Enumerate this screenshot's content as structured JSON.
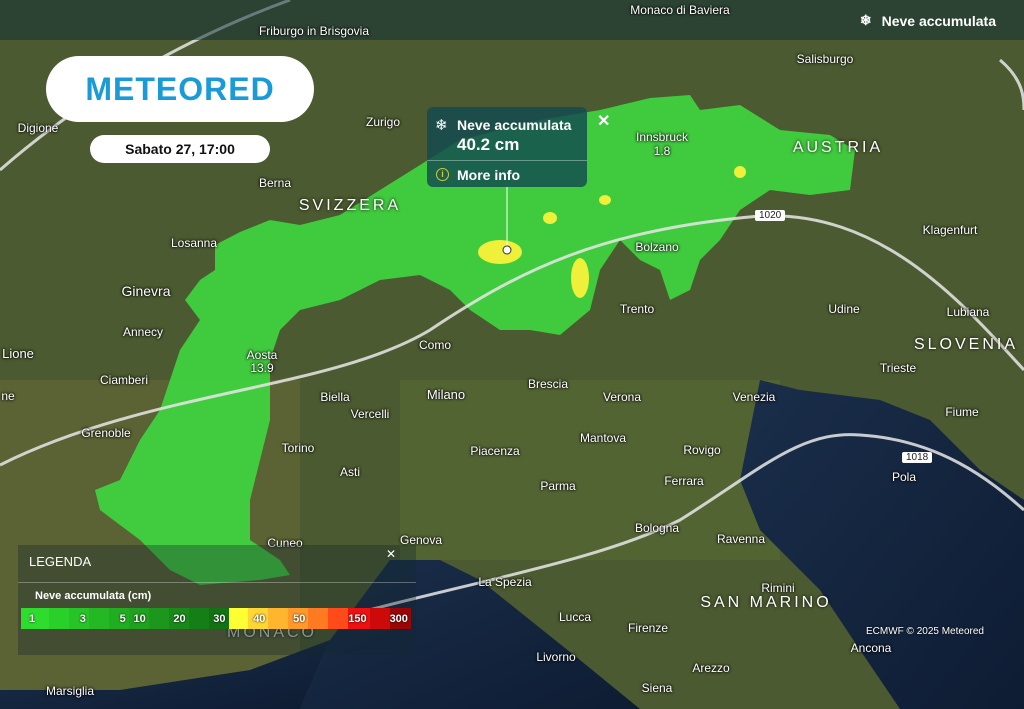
{
  "layer": {
    "title": "Neve accumulata",
    "icon": "snowflake-icon"
  },
  "logo": "METEORED",
  "date_label": "Sabato 27, 17:00",
  "popup": {
    "title": "Neve accumulata",
    "value": "40.2 cm",
    "more_info": "More info",
    "close": "✕"
  },
  "legend": {
    "title": "LEGENDA",
    "close": "✕",
    "unit_label": "Neve accumulata (cm)",
    "scale": [
      {
        "label": "1",
        "color": "#2edc2e"
      },
      {
        "label": "",
        "color": "#2ad02a"
      },
      {
        "label": "3",
        "color": "#27c427"
      },
      {
        "label": "",
        "color": "#24b824"
      },
      {
        "label": "5",
        "color": "#21ad21"
      },
      {
        "label": "10",
        "color": "#1fa21f"
      },
      {
        "label": "",
        "color": "#1c961c"
      },
      {
        "label": "20",
        "color": "#198a19"
      },
      {
        "label": "",
        "color": "#167e16"
      },
      {
        "label": "30",
        "color": "#137213"
      },
      {
        "label": "",
        "color": "#ffff33"
      },
      {
        "label": "40",
        "color": "#ffd633"
      },
      {
        "label": "",
        "color": "#ffb52e"
      },
      {
        "label": "50",
        "color": "#ff9a2a"
      },
      {
        "label": "",
        "color": "#ff7a20"
      },
      {
        "label": "",
        "color": "#ff4a1a"
      },
      {
        "label": "150",
        "color": "#ee1111"
      },
      {
        "label": "",
        "color": "#cc0a0a"
      },
      {
        "label": "300",
        "color": "#9a0606"
      }
    ]
  },
  "credit": "ECMWF © 2025 Meteored",
  "isobars": [
    "1020",
    "1018"
  ],
  "countries": [
    "SVIZZERA",
    "AUSTRIA",
    "SLOVENIA",
    "SAN MARINO",
    "MONACO"
  ],
  "cities": [
    "Friburgo in Brisgovia",
    "Monaco di Baviera",
    "Salisburgo",
    "Digione",
    "Zurigo",
    "Innsbruck",
    "1.8",
    "Berna",
    "Losanna",
    "Ginevra",
    "Annecy",
    "Aosta",
    "13.9",
    "Lione",
    "Ciamberi",
    "Grenoble",
    "Torino",
    "Biella",
    "Vercelli",
    "Como",
    "Milano",
    "Brescia",
    "Verona",
    "Bolzano",
    "Trento",
    "Udine",
    "Klagenfurt",
    "Lubiana",
    "Trieste",
    "Venezia",
    "Fiume",
    "Rovigo",
    "Mantova",
    "Piacenza",
    "Asti",
    "Parma",
    "Ferrara",
    "Pola",
    "Bologna",
    "Ravenna",
    "Genova",
    "Cuneo",
    "La Spezia",
    "Rimini",
    "Lucca",
    "Firenze",
    "Livorno",
    "Arezzo",
    "Ancona",
    "Siena",
    "Marsiglia",
    "ne"
  ]
}
